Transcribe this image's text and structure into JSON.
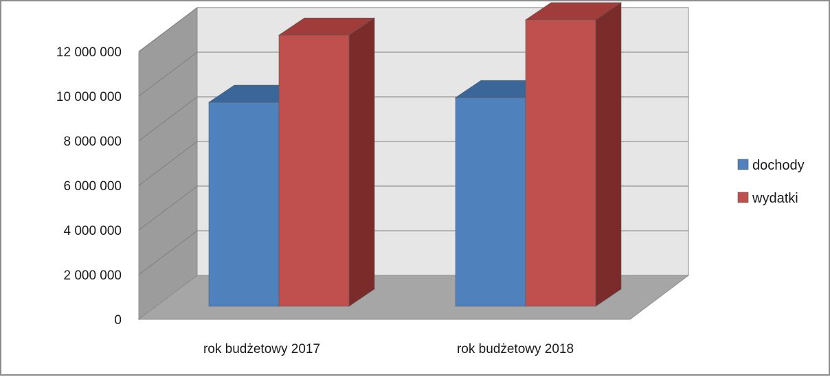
{
  "chart_data": {
    "type": "bar",
    "style": "3d-clustered-column",
    "categories": [
      "rok budżetowy 2017",
      "rok budżetowy 2018"
    ],
    "series": [
      {
        "name": "dochody",
        "values": [
          8650000,
          8850000
        ],
        "color": "#4f81bd"
      },
      {
        "name": "wydatki",
        "values": [
          11500000,
          12150000
        ],
        "color": "#c0504d"
      }
    ],
    "y_ticks": [
      "0",
      "2 000 000",
      "4 000 000",
      "6 000 000",
      "8 000 000",
      "10 000 000",
      "12 000 000"
    ],
    "ylim": [
      0,
      12000000
    ],
    "grid": true,
    "legend_position": "right",
    "title": "",
    "xlabel": "",
    "ylabel": ""
  }
}
